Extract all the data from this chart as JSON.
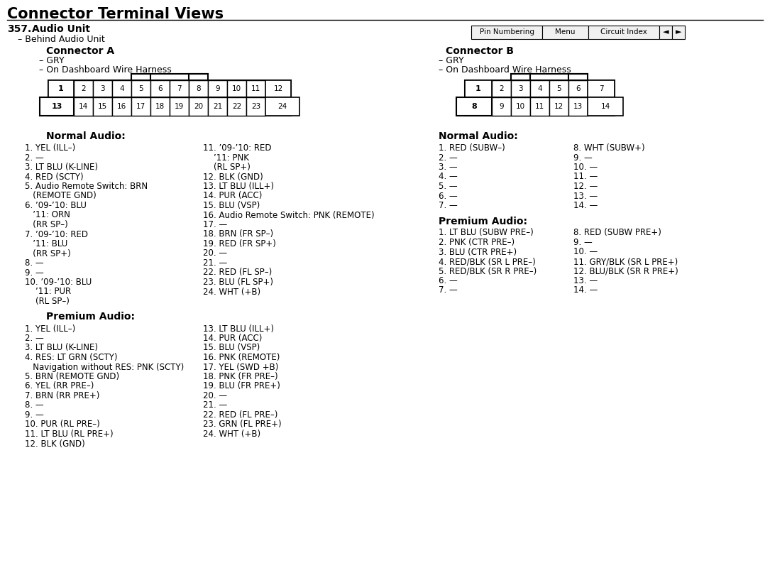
{
  "title": "Connector Terminal Views",
  "section_num": "357.",
  "section_title": "Audio Unit",
  "section_sub": "– Behind Audio Unit",
  "conn_a_title": "Connector A",
  "conn_a_sub1": "– GRY",
  "conn_a_sub2": "– On Dashboard Wire Harness",
  "conn_b_title": "Connector B",
  "conn_b_sub1": "– GRY",
  "conn_b_sub2": "– On Dashboard Wire Harness",
  "nav_buttons": [
    "Pin Numbering",
    "Menu",
    "Circuit Index"
  ],
  "conn_a_top_pins": [
    "1",
    "2",
    "3",
    "4",
    "5",
    "6",
    "7",
    "8",
    "9",
    "10",
    "11",
    "12"
  ],
  "conn_a_bot_pins": [
    "13",
    "14",
    "15",
    "16",
    "17",
    "18",
    "19",
    "20",
    "21",
    "22",
    "23",
    "24"
  ],
  "conn_b_top_pins": [
    "1",
    "2",
    "3",
    "4",
    "5",
    "6",
    "7"
  ],
  "conn_b_bot_pins": [
    "8",
    "9",
    "10",
    "11",
    "12",
    "13",
    "14"
  ],
  "normal_audio_left": [
    [
      "1. YEL (ILL–)",
      1
    ],
    [
      "2. —",
      1
    ],
    [
      "3. LT BLU (K-LINE)",
      1
    ],
    [
      "4. RED (SCTY)",
      1
    ],
    [
      "5. Audio Remote Switch: BRN",
      1
    ],
    [
      "   (REMOTE GND)",
      1
    ],
    [
      "6. ’09-’10: BLU",
      1
    ],
    [
      "   ’11: ORN",
      1
    ],
    [
      "   (RR SP–)",
      1
    ],
    [
      "7. ’09-’10: RED",
      1
    ],
    [
      "   ’11: BLU",
      1
    ],
    [
      "   (RR SP+)",
      1
    ],
    [
      "8. —",
      1
    ],
    [
      "9. —",
      1
    ],
    [
      "10. ’09-’10: BLU",
      1
    ],
    [
      "    ’11: PUR",
      1
    ],
    [
      "    (RL SP–)",
      1
    ]
  ],
  "normal_audio_right": [
    [
      "11. ’09-’10: RED",
      1
    ],
    [
      "    ’11: PNK",
      1
    ],
    [
      "    (RL SP+)",
      1
    ],
    [
      "12. BLK (GND)",
      1
    ],
    [
      "13. LT BLU (ILL+)",
      1
    ],
    [
      "14. PUR (ACC)",
      1
    ],
    [
      "15. BLU (VSP)",
      1
    ],
    [
      "16. Audio Remote Switch: PNK (REMOTE)",
      1
    ],
    [
      "17. —",
      1
    ],
    [
      "18. BRN (FR SP–)",
      1
    ],
    [
      "19. RED (FR SP+)",
      1
    ],
    [
      "20. —",
      1
    ],
    [
      "21. —",
      1
    ],
    [
      "22. RED (FL SP–)",
      1
    ],
    [
      "23. BLU (FL SP+)",
      1
    ],
    [
      "24. WHT (+B)",
      1
    ]
  ],
  "premium_audio_left": [
    [
      "1. YEL (ILL–)",
      1
    ],
    [
      "2. —",
      1
    ],
    [
      "3. LT BLU (K-LINE)",
      1
    ],
    [
      "4. RES: LT GRN (SCTY)",
      1
    ],
    [
      "   Navigation without RES: PNK (SCTY)",
      1
    ],
    [
      "5. BRN (REMOTE GND)",
      1
    ],
    [
      "6. YEL (RR PRE–)",
      1
    ],
    [
      "7. BRN (RR PRE+)",
      1
    ],
    [
      "8. —",
      1
    ],
    [
      "9. —",
      1
    ],
    [
      "10. PUR (RL PRE–)",
      1
    ],
    [
      "11. LT BLU (RL PRE+)",
      1
    ],
    [
      "12. BLK (GND)",
      1
    ]
  ],
  "premium_audio_right": [
    [
      "13. LT BLU (ILL+)",
      1
    ],
    [
      "14. PUR (ACC)",
      1
    ],
    [
      "15. BLU (VSP)",
      1
    ],
    [
      "16. PNK (REMOTE)",
      1
    ],
    [
      "17. YEL (SWD +B)",
      1
    ],
    [
      "18. PNK (FR PRE–)",
      1
    ],
    [
      "19. BLU (FR PRE+)",
      1
    ],
    [
      "20. —",
      1
    ],
    [
      "21. —",
      1
    ],
    [
      "22. RED (FL PRE–)",
      1
    ],
    [
      "23. GRN (FL PRE+)",
      1
    ],
    [
      "24. WHT (+B)",
      1
    ]
  ],
  "conn_b_normal_left": [
    "1. RED (SUBW–)",
    "2. —",
    "3. —",
    "4. —",
    "5. —",
    "6. —",
    "7. —"
  ],
  "conn_b_normal_right": [
    "8. WHT (SUBW+)",
    "9. —",
    "10. —",
    "11. —",
    "12. —",
    "13. —",
    "14. —"
  ],
  "conn_b_premium_left": [
    "1. LT BLU (SUBW PRE–)",
    "2. PNK (CTR PRE–)",
    "3. BLU (CTR PRE+)",
    "4. RED/BLK (SR L PRE–)",
    "5. RED/BLK (SR R PRE–)",
    "6. —",
    "7. —"
  ],
  "conn_b_premium_right": [
    "8. RED (SUBW PRE+)",
    "9. —",
    "10. —",
    "11. GRY/BLK (SR L PRE+)",
    "12. BLU/BLK (SR R PRE+)",
    "13. —",
    "14. —"
  ],
  "fig_width": 10.85,
  "fig_height": 7.93,
  "dpi": 100
}
